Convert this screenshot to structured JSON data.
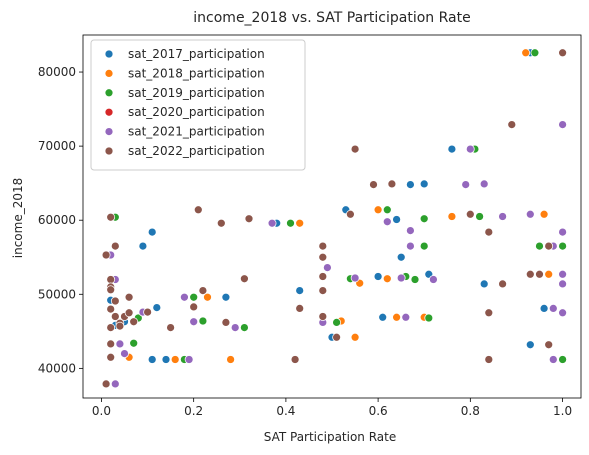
{
  "chart_data": {
    "type": "scatter",
    "title": "income_2018 vs. SAT Participation Rate",
    "xlabel": "SAT Participation Rate",
    "ylabel": "income_2018",
    "xlim": [
      -0.04,
      1.04
    ],
    "ylim": [
      36000,
      85000
    ],
    "xticks": [
      0.0,
      0.2,
      0.4,
      0.6,
      0.8,
      1.0
    ],
    "xtick_labels": [
      "0.0",
      "0.2",
      "0.4",
      "0.6",
      "0.8",
      "1.0"
    ],
    "yticks": [
      40000,
      50000,
      60000,
      70000,
      80000
    ],
    "ytick_labels": [
      "40000",
      "50000",
      "60000",
      "70000",
      "80000"
    ],
    "grid": false,
    "legend_position": "top-left",
    "series": [
      {
        "name": "sat_2017_participation",
        "color": "#1f77b4",
        "points": [
          [
            0.02,
            49200
          ],
          [
            0.03,
            52000
          ],
          [
            0.03,
            45800
          ],
          [
            0.05,
            46300
          ],
          [
            0.09,
            56500
          ],
          [
            0.11,
            58400
          ],
          [
            0.12,
            48200
          ],
          [
            0.11,
            41200
          ],
          [
            0.14,
            41200
          ],
          [
            0.27,
            49600
          ],
          [
            0.38,
            59600
          ],
          [
            0.43,
            50500
          ],
          [
            0.5,
            44200
          ],
          [
            0.53,
            61400
          ],
          [
            0.6,
            52400
          ],
          [
            0.61,
            46900
          ],
          [
            0.64,
            60100
          ],
          [
            0.65,
            55000
          ],
          [
            0.67,
            64800
          ],
          [
            0.7,
            64900
          ],
          [
            0.71,
            52700
          ],
          [
            0.76,
            69600
          ],
          [
            0.83,
            51400
          ],
          [
            0.93,
            43200
          ],
          [
            0.96,
            48100
          ],
          [
            0.93,
            82600
          ],
          [
            1.0,
            56500
          ]
        ]
      },
      {
        "name": "sat_2018_participation",
        "color": "#ff7f0e",
        "points": [
          [
            0.03,
            56500
          ],
          [
            0.06,
            41500
          ],
          [
            0.16,
            41200
          ],
          [
            0.23,
            49600
          ],
          [
            0.28,
            41200
          ],
          [
            0.43,
            59600
          ],
          [
            0.48,
            50500
          ],
          [
            0.52,
            46400
          ],
          [
            0.55,
            44200
          ],
          [
            0.56,
            51500
          ],
          [
            0.6,
            61400
          ],
          [
            0.62,
            52100
          ],
          [
            0.64,
            46900
          ],
          [
            0.7,
            46900
          ],
          [
            0.76,
            60500
          ],
          [
            0.92,
            82600
          ],
          [
            0.97,
            52700
          ],
          [
            0.96,
            60800
          ],
          [
            0.98,
            56500
          ]
        ]
      },
      {
        "name": "sat_2019_participation",
        "color": "#2ca02c",
        "points": [
          [
            0.03,
            60400
          ],
          [
            0.04,
            43300
          ],
          [
            0.07,
            43400
          ],
          [
            0.08,
            46800
          ],
          [
            0.18,
            41200
          ],
          [
            0.2,
            49600
          ],
          [
            0.22,
            46400
          ],
          [
            0.31,
            45500
          ],
          [
            0.41,
            59600
          ],
          [
            0.51,
            46200
          ],
          [
            0.54,
            52100
          ],
          [
            0.62,
            61400
          ],
          [
            0.66,
            52400
          ],
          [
            0.68,
            52000
          ],
          [
            0.7,
            60200
          ],
          [
            0.7,
            56500
          ],
          [
            0.71,
            46800
          ],
          [
            0.81,
            69600
          ],
          [
            0.82,
            60500
          ],
          [
            0.94,
            82600
          ],
          [
            0.95,
            56500
          ],
          [
            1.0,
            41200
          ],
          [
            1.0,
            56500
          ]
        ]
      },
      {
        "name": "sat_2020_participation",
        "color": "#d62728",
        "points": []
      },
      {
        "name": "sat_2021_participation",
        "color": "#9467bd",
        "points": [
          [
            0.01,
            37900
          ],
          [
            0.03,
            37900
          ],
          [
            0.02,
            55300
          ],
          [
            0.03,
            52000
          ],
          [
            0.04,
            43300
          ],
          [
            0.05,
            42000
          ],
          [
            0.09,
            47600
          ],
          [
            0.18,
            49600
          ],
          [
            0.19,
            41200
          ],
          [
            0.2,
            46300
          ],
          [
            0.29,
            45500
          ],
          [
            0.37,
            59600
          ],
          [
            0.48,
            46200
          ],
          [
            0.49,
            53600
          ],
          [
            0.55,
            52200
          ],
          [
            0.62,
            59800
          ],
          [
            0.65,
            52200
          ],
          [
            0.66,
            46900
          ],
          [
            0.67,
            56500
          ],
          [
            0.67,
            58600
          ],
          [
            0.72,
            52000
          ],
          [
            0.79,
            64800
          ],
          [
            0.8,
            69600
          ],
          [
            0.83,
            64900
          ],
          [
            0.87,
            60500
          ],
          [
            0.93,
            60800
          ],
          [
            0.98,
            41200
          ],
          [
            0.98,
            48100
          ],
          [
            0.98,
            56500
          ],
          [
            1.0,
            58400
          ],
          [
            1.0,
            52700
          ],
          [
            1.0,
            51400
          ],
          [
            1.0,
            47500
          ],
          [
            1.0,
            72900
          ]
        ]
      },
      {
        "name": "sat_2022_participation",
        "color": "#8c564b",
        "points": [
          [
            0.01,
            55300
          ],
          [
            0.01,
            37900
          ],
          [
            0.02,
            60400
          ],
          [
            0.02,
            52000
          ],
          [
            0.02,
            51000
          ],
          [
            0.02,
            50600
          ],
          [
            0.02,
            48000
          ],
          [
            0.02,
            45500
          ],
          [
            0.02,
            43300
          ],
          [
            0.02,
            41500
          ],
          [
            0.03,
            56500
          ],
          [
            0.03,
            49100
          ],
          [
            0.03,
            47000
          ],
          [
            0.04,
            46100
          ],
          [
            0.04,
            45700
          ],
          [
            0.05,
            47000
          ],
          [
            0.06,
            49600
          ],
          [
            0.06,
            47500
          ],
          [
            0.07,
            46300
          ],
          [
            0.1,
            47600
          ],
          [
            0.15,
            45500
          ],
          [
            0.2,
            48300
          ],
          [
            0.21,
            61400
          ],
          [
            0.22,
            50500
          ],
          [
            0.26,
            59600
          ],
          [
            0.27,
            46200
          ],
          [
            0.31,
            52100
          ],
          [
            0.32,
            60200
          ],
          [
            0.42,
            41200
          ],
          [
            0.43,
            48100
          ],
          [
            0.48,
            56500
          ],
          [
            0.48,
            55000
          ],
          [
            0.48,
            52400
          ],
          [
            0.48,
            50500
          ],
          [
            0.48,
            47000
          ],
          [
            0.51,
            44200
          ],
          [
            0.54,
            60800
          ],
          [
            0.55,
            69600
          ],
          [
            0.59,
            64800
          ],
          [
            0.63,
            64900
          ],
          [
            0.8,
            60800
          ],
          [
            0.84,
            58400
          ],
          [
            0.84,
            47500
          ],
          [
            0.84,
            41200
          ],
          [
            0.87,
            51400
          ],
          [
            0.89,
            72900
          ],
          [
            0.93,
            52700
          ],
          [
            0.95,
            52700
          ],
          [
            0.97,
            56500
          ],
          [
            0.97,
            43200
          ],
          [
            1.0,
            82600
          ]
        ]
      }
    ]
  }
}
